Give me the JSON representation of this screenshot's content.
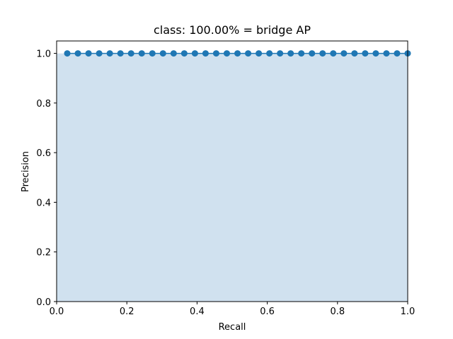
{
  "chart_data": {
    "type": "area",
    "title": "class: 100.00% = bridge AP",
    "xlabel": "Recall",
    "ylabel": "Precision",
    "xlim": [
      0.0,
      1.0
    ],
    "ylim": [
      0.0,
      1.05
    ],
    "xticks": [
      0.0,
      0.2,
      0.4,
      0.6,
      0.8,
      1.0
    ],
    "xtick_labels": [
      "0.0",
      "0.2",
      "0.4",
      "0.6",
      "0.8",
      "1.0"
    ],
    "yticks": [
      0.0,
      0.2,
      0.4,
      0.6,
      0.8,
      1.0
    ],
    "ytick_labels": [
      "0.0",
      "0.2",
      "0.4",
      "0.6",
      "0.8",
      "1.0"
    ],
    "grid": false,
    "series": [
      {
        "x": [
          0.0303,
          0.0606,
          0.0909,
          0.1212,
          0.1515,
          0.1818,
          0.2121,
          0.2424,
          0.2727,
          0.303,
          0.3333,
          0.3636,
          0.3939,
          0.4242,
          0.4545,
          0.4848,
          0.5152,
          0.5455,
          0.5758,
          0.6061,
          0.6364,
          0.6667,
          0.697,
          0.7273,
          0.7576,
          0.7879,
          0.8182,
          0.8485,
          0.8788,
          0.9091,
          0.9394,
          0.9697,
          1.0
        ],
        "y": [
          1.0,
          1.0,
          1.0,
          1.0,
          1.0,
          1.0,
          1.0,
          1.0,
          1.0,
          1.0,
          1.0,
          1.0,
          1.0,
          1.0,
          1.0,
          1.0,
          1.0,
          1.0,
          1.0,
          1.0,
          1.0,
          1.0,
          1.0,
          1.0,
          1.0,
          1.0,
          1.0,
          1.0,
          1.0,
          1.0,
          1.0,
          1.0,
          1.0
        ],
        "fill_under": true,
        "markers": true
      }
    ],
    "colors": {
      "line": "#1f77b4",
      "marker": "#1f77b4",
      "fill": "#d0e1ef",
      "axes": "#000000"
    }
  }
}
